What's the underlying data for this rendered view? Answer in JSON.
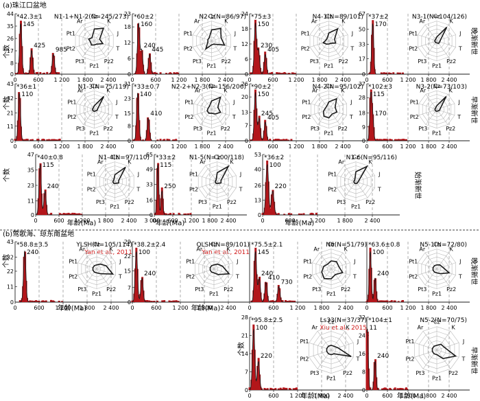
{
  "figure": {
    "section_a": "(a)珠江口盆地",
    "section_b": "(b)莺歌海、琼东南盆地",
    "ylabel": "个数",
    "xlabel": "年龄(Ma)"
  },
  "radar_axes": [
    "Cz",
    "K",
    "J",
    "T",
    "Pz2",
    "Pz1",
    "Pt3",
    "Pt2",
    "Pt1",
    "Ar"
  ],
  "epochs": {
    "late_oligocene": "晚渐新世",
    "early_oligocene": "早渐新世",
    "eocene": "始渐新世"
  },
  "colors": {
    "bar": "#b3161b",
    "dark": "#1a1a1a",
    "dash": "#777777",
    "radar": "#b9b9b9",
    "cite": "#d11a1a"
  },
  "chart_data": [
    {
      "type": "bar",
      "id": "a1",
      "label": "N1-1+N1-2(N=245/273)",
      "age": "*42.3±1",
      "peaks": [
        145,
        425,
        985
      ],
      "yticks": [
        0,
        8,
        17,
        26,
        35,
        44
      ],
      "ymax": 44,
      "xticks": [
        0,
        600,
        1200,
        1800,
        2400
      ],
      "xlim": [
        0,
        3000
      ],
      "radar_values": [
        0.6,
        0.78,
        0.28,
        0.45,
        0.2,
        0.2,
        0.25,
        0.2,
        0.3,
        0.2
      ]
    },
    {
      "type": "bar",
      "id": "a2",
      "label": "N2-1(N=86/97)",
      "age": "*60±2",
      "peaks": [
        160,
        240,
        445
      ],
      "yticks": [
        0,
        6,
        12,
        18,
        23
      ],
      "ymax": 23,
      "xticks": [
        0,
        600,
        1200,
        1800,
        2400
      ],
      "xlim": [
        0,
        3000
      ],
      "radar_values": [
        0.55,
        0.78,
        0.5,
        0.68,
        0.2,
        0.2,
        0.5,
        0.2,
        0.2,
        0.2
      ]
    },
    {
      "type": "bar",
      "id": "a3",
      "label": "N4-1(N=89/101)",
      "age": "*75±3",
      "peaks": [
        150,
        230,
        405
      ],
      "yticks": [
        0,
        6,
        12,
        18,
        24
      ],
      "ymax": 24,
      "xticks": [
        0,
        600,
        1200,
        1800,
        2400
      ],
      "xlim": [
        0,
        3000
      ],
      "radar_values": [
        0.4,
        0.75,
        0.3,
        0.35,
        0.15,
        0.15,
        0.2,
        0.3,
        0.15,
        0.15
      ]
    },
    {
      "type": "bar",
      "id": "a4",
      "label": "N3-1(N=104/126)",
      "age": "*37±2",
      "peaks": [
        170
      ],
      "yticks": [
        0,
        17,
        33,
        50,
        67
      ],
      "ymax": 67,
      "xticks": [
        0,
        600,
        1200,
        1800,
        2400
      ],
      "xlim": [
        0,
        3000
      ],
      "radar_values": [
        0.2,
        0.85,
        0.2,
        0.15,
        0.15,
        0.1,
        0.1,
        0.1,
        0.1,
        0.1
      ]
    },
    {
      "type": "bar",
      "id": "a5",
      "label": "N1-3(N=75/119)",
      "age": "*36±1",
      "peaks": [
        110
      ],
      "yticks": [
        0,
        11,
        21,
        32,
        43
      ],
      "ymax": 43,
      "xticks": [
        0,
        600,
        1200,
        1800,
        2400
      ],
      "xlim": [
        0,
        3000
      ],
      "radar_values": [
        0.2,
        0.85,
        0.2,
        0.15,
        0.1,
        0.1,
        0.1,
        0.1,
        0.1,
        0.1
      ]
    },
    {
      "type": "bar",
      "id": "a6",
      "label": "N2-2+N2-3(N=156/206)",
      "age": "*33±0.7",
      "peaks": [
        140,
        410
      ],
      "yticks": [
        0,
        8,
        15,
        23,
        31
      ],
      "ymax": 31,
      "xticks": [
        0,
        600,
        1200,
        1800,
        2400
      ],
      "xlim": [
        0,
        3000
      ],
      "radar_values": [
        0.45,
        0.8,
        0.35,
        0.5,
        0.3,
        0.2,
        0.25,
        0.25,
        0.2,
        0.2
      ]
    },
    {
      "type": "bar",
      "id": "a7",
      "label": "N4-2(N=95/102)",
      "age": "*90±2",
      "peaks": [
        150,
        245,
        405
      ],
      "yticks": [
        0,
        7,
        13,
        20,
        26
      ],
      "ymax": 26,
      "xticks": [
        0,
        600,
        1200,
        1800,
        2400
      ],
      "xlim": [
        0,
        3000
      ],
      "radar_values": [
        0.4,
        0.7,
        0.35,
        0.45,
        0.3,
        0.45,
        0.45,
        0.3,
        0.2,
        0.2
      ]
    },
    {
      "type": "bar",
      "id": "a8",
      "label": "N3-2(N=73/103)",
      "age": "*102±3",
      "peaks": [
        115,
        170
      ],
      "yticks": [
        0,
        9,
        18,
        28,
        37
      ],
      "ymax": 37,
      "xticks": [
        0,
        600,
        1200,
        1800,
        2400
      ],
      "xlim": [
        0,
        3000
      ],
      "radar_values": [
        0.2,
        0.85,
        0.2,
        0.15,
        0.1,
        0.1,
        0.1,
        0.1,
        0.1,
        0.1
      ]
    },
    {
      "type": "bar",
      "id": "a9",
      "label": "N1-4(N=97/110)",
      "age": "*40±0.8",
      "peaks": [
        115,
        240
      ],
      "yticks": [
        0,
        11,
        23,
        35,
        47
      ],
      "ymax": 47,
      "xticks": [
        0,
        600,
        1200,
        1800,
        2400,
        3000
      ],
      "xtick_labels": [
        "0",
        "600",
        "1 200",
        "1 800",
        "2 400",
        "3 000"
      ],
      "xlim": [
        0,
        3000
      ],
      "radar_values": [
        0.35,
        0.9,
        0.2,
        0.2,
        0.1,
        0.1,
        0.1,
        0.1,
        0.1,
        0.1
      ]
    },
    {
      "type": "bar",
      "id": "a10",
      "label": "N1-5(N=100/118)",
      "age": "*33±2",
      "peaks": [
        115,
        250
      ],
      "yticks": [
        0,
        16,
        33,
        49,
        65
      ],
      "ymax": 65,
      "xticks": [
        0,
        600,
        1200,
        1800,
        2400
      ],
      "xlim": [
        0,
        3000
      ],
      "radar_values": [
        0.45,
        0.95,
        0.2,
        0.2,
        0.1,
        0.1,
        0.1,
        0.1,
        0.1,
        0.1
      ]
    },
    {
      "type": "bar",
      "id": "a11",
      "label": "N1-6(N=95/116)",
      "age": "*36±2",
      "peaks": [
        100,
        220
      ],
      "yticks": [
        0,
        13,
        26,
        40,
        53
      ],
      "ymax": 53,
      "xticks": [
        0,
        600,
        1200,
        1800,
        2400
      ],
      "xlim": [
        0,
        3000
      ],
      "radar_values": [
        0.5,
        0.95,
        0.15,
        0.1,
        0.1,
        0.1,
        0.1,
        0.1,
        0.1,
        0.1
      ]
    },
    {
      "type": "bar",
      "id": "b1",
      "label": "YLSH(N=105/114)",
      "cite": "Yan et al., 2011",
      "age": "*58.8±3.5",
      "peaks": [
        240
      ],
      "yticks": [
        0,
        11,
        22,
        32,
        43
      ],
      "ymax": 43,
      "xticks": [
        0,
        600,
        1200,
        1800,
        2400
      ],
      "xlim": [
        0,
        3000
      ],
      "radar_values": [
        0.2,
        0.3,
        0.5,
        0.85,
        0.3,
        0.2,
        0.2,
        0.2,
        0.2,
        0.2
      ]
    },
    {
      "type": "bar",
      "id": "b2",
      "label": "QLSH(N=89/101)",
      "cite": "Yan et al., 2011",
      "age": "*38.2±2.4",
      "peaks": [
        100,
        240
      ],
      "yticks": [
        0,
        7,
        15,
        22,
        29
      ],
      "ymax": 29,
      "xticks": [
        0,
        600,
        1200,
        1800,
        2400
      ],
      "xlim": [
        0,
        3000
      ],
      "radar_values": [
        0.2,
        0.3,
        0.45,
        0.8,
        0.35,
        0.2,
        0.2,
        0.2,
        0.2,
        0.2
      ]
    },
    {
      "type": "bar",
      "id": "b3",
      "label": "N6(N=51/79)",
      "age": "*75.5±2.1",
      "peaks": [
        145,
        240,
        410,
        730
      ],
      "yticks": [],
      "ymax": 10,
      "xticks": [
        0,
        600,
        1200,
        1800,
        2400
      ],
      "xlim": [
        0,
        3000
      ],
      "radar_values": [
        0.4,
        0.45,
        0.4,
        0.6,
        0.35,
        0.5,
        0.6,
        0.5,
        0.4,
        0.3
      ]
    },
    {
      "type": "bar",
      "id": "b4",
      "label": "N5-1(N=72/80)",
      "age": "*63.6±0.8",
      "peaks": [
        100,
        240
      ],
      "yticks": [],
      "ymax": 10,
      "xticks": [
        0,
        600,
        1200,
        1800,
        2400
      ],
      "xlim": [
        0,
        3000
      ],
      "radar_values": [
        0.2,
        0.25,
        0.3,
        0.65,
        0.3,
        0.2,
        0.2,
        0.2,
        0.2,
        0.2
      ]
    },
    {
      "type": "bar",
      "id": "b5",
      "label": "Ls33(N=37/37)",
      "cite": "Xiu et al., 2015",
      "age": "*95.8±2.5",
      "peaks": [
        100,
        220
      ],
      "yticks": [
        0,
        7,
        14,
        21,
        28
      ],
      "ymax": 28,
      "xticks": [
        0,
        600,
        1200,
        1800,
        2400
      ],
      "xlim": [
        0,
        3000
      ],
      "radar_values": [
        0.2,
        0.2,
        0.3,
        0.9,
        0.2,
        0.2,
        0.2,
        0.2,
        0.2,
        0.2
      ]
    },
    {
      "type": "bar",
      "id": "b6",
      "label": "N5-2(N=70/75)",
      "age": "*104±1",
      "peaks": [
        11,
        240
      ],
      "yticks": [
        0,
        8,
        16,
        24,
        32
      ],
      "ymax": 32,
      "xticks": [
        0,
        600,
        1200,
        1800,
        2400
      ],
      "xlim": [
        0,
        3000
      ],
      "radar_values": [
        0.2,
        0.3,
        0.35,
        0.85,
        0.45,
        0.2,
        0.2,
        0.2,
        0.2,
        0.2
      ]
    }
  ]
}
